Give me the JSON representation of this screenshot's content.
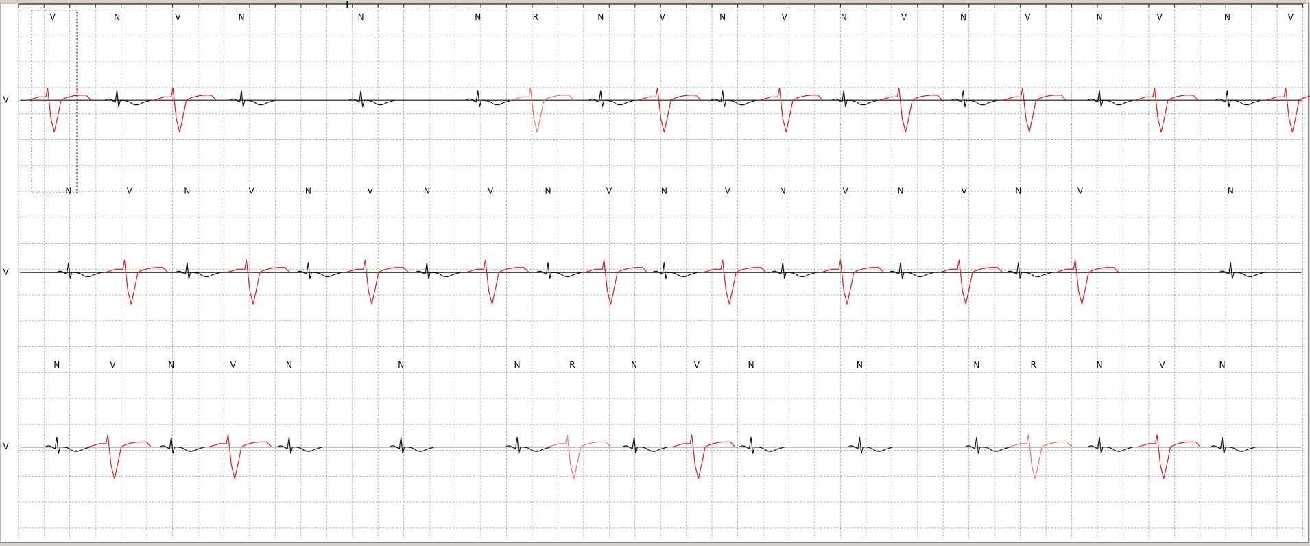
{
  "strips": [
    {
      "lead": "V",
      "beats": [
        "V",
        "N",
        "V",
        "N",
        "N",
        "N",
        "R",
        "N",
        "V",
        "N",
        "V",
        "N",
        "V",
        "N",
        "V",
        "N",
        "V",
        "N",
        "V"
      ]
    },
    {
      "lead": "V",
      "beats": [
        "N",
        "V",
        "N",
        "V",
        "N",
        "V",
        "N",
        "V",
        "N",
        "V",
        "N",
        "V",
        "N",
        "V",
        "N",
        "V",
        "N",
        "V",
        "N"
      ]
    },
    {
      "lead": "V",
      "beats": [
        "N",
        "V",
        "N",
        "V",
        "N",
        "N",
        "N",
        "R",
        "N",
        "V",
        "N",
        "N",
        "N",
        "R",
        "N",
        "V",
        "N"
      ]
    }
  ]
}
